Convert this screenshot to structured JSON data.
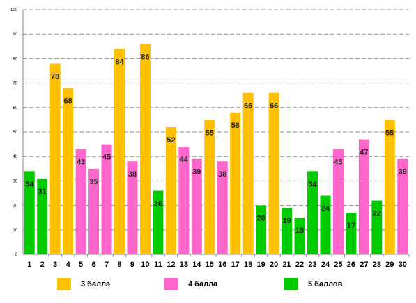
{
  "chart_data": {
    "type": "bar",
    "title": "",
    "xlabel": "",
    "ylabel": "",
    "ylim": [
      0,
      100
    ],
    "yticks": [
      0,
      10,
      20,
      30,
      40,
      50,
      60,
      70,
      80,
      90,
      100
    ],
    "grid": true,
    "legend_position": "bottom",
    "categories": [
      "1",
      "2",
      "3",
      "4",
      "5",
      "6",
      "7",
      "8",
      "9",
      "10",
      "11",
      "12",
      "13",
      "14",
      "15",
      "16",
      "17",
      "18",
      "19",
      "20",
      "21",
      "22",
      "23",
      "24",
      "25",
      "26",
      "27",
      "28",
      "29",
      "30"
    ],
    "values": [
      34,
      31,
      78,
      68,
      43,
      35,
      45,
      84,
      38,
      86,
      26,
      52,
      44,
      39,
      55,
      38,
      58,
      66,
      20,
      66,
      19,
      15,
      34,
      24,
      43,
      17,
      47,
      22,
      55,
      39
    ],
    "bar_series": [
      "5 баллов",
      "5 баллов",
      "3 балла",
      "3 балла",
      "4 балла",
      "4 балла",
      "4 балла",
      "3 балла",
      "4 балла",
      "3 балла",
      "5 баллов",
      "3 балла",
      "4 балла",
      "4 балла",
      "3 балла",
      "4 балла",
      "3 балла",
      "3 балла",
      "5 баллов",
      "3 балла",
      "5 баллов",
      "5 баллов",
      "5 баллов",
      "5 баллов",
      "4 балла",
      "5 баллов",
      "4 балла",
      "5 баллов",
      "3 балла",
      "4 балла"
    ],
    "series": [
      {
        "name": "3 балла",
        "color": "#FFC000"
      },
      {
        "name": "4 балла",
        "color": "#FF66CC"
      },
      {
        "name": "5 баллов",
        "color": "#00CC00"
      }
    ]
  }
}
